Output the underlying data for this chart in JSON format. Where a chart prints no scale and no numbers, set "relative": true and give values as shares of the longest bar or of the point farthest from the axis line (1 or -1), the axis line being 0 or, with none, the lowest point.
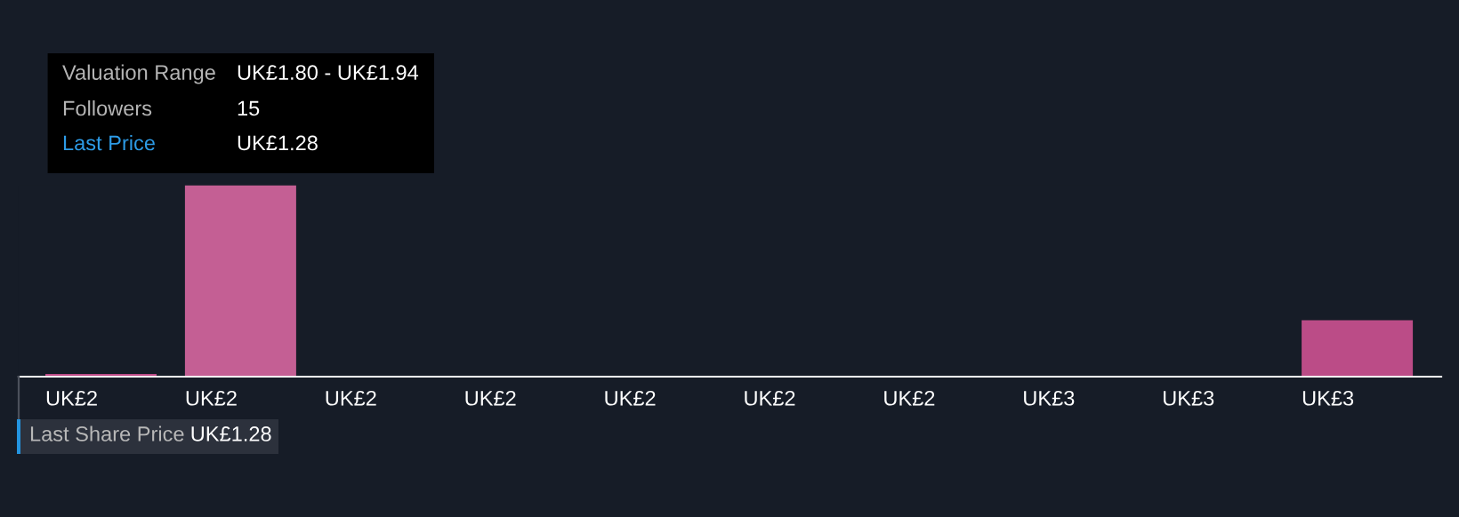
{
  "chart_data": {
    "type": "bar",
    "relative": true,
    "categories": [
      "UK£2",
      "UK£2",
      "UK£2",
      "UK£2",
      "UK£2",
      "UK£2",
      "UK£2",
      "UK£3",
      "UK£3",
      "UK£3"
    ],
    "values": [
      0.014,
      1,
      0,
      0,
      0,
      0,
      0,
      0,
      0,
      0.295
    ],
    "colors": [
      "#bd4b87",
      "#c45f94",
      "#bd4b87",
      "#bd4b87",
      "#bd4b87",
      "#bd4b87",
      "#bd4b87",
      "#bd4b87",
      "#bd4b87",
      "#bb4c87"
    ],
    "annotations": [
      "Valuation Range",
      "UK£1.80 - UK£1.94",
      "Followers",
      "15",
      "Last Price",
      "UK£1.28",
      "Last Share Price",
      "UK£1.28"
    ]
  }
}
